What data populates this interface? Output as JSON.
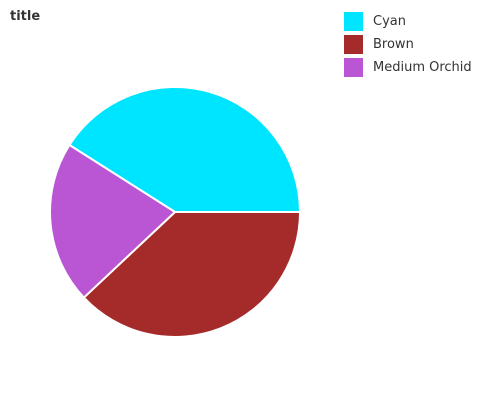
{
  "chart_data": {
    "type": "pie",
    "title": "title",
    "categories": [
      "Cyan",
      "Brown",
      "Medium Orchid"
    ],
    "values": [
      41,
      38,
      21
    ],
    "colors": [
      "#00e5ff",
      "#a52a2a",
      "#ba55d3"
    ],
    "legend_position": "top-right"
  }
}
